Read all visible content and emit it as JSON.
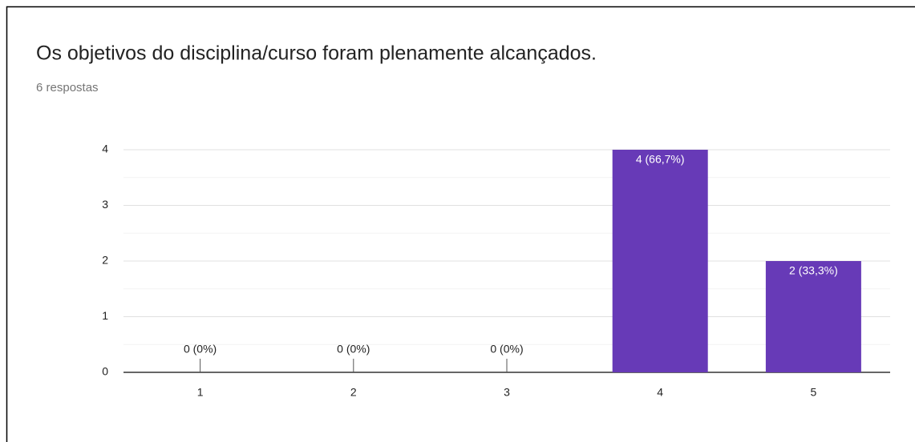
{
  "chart_data": {
    "type": "bar",
    "title": "Os objetivos do disciplina/curso foram plenamente alcançados.",
    "subtitle": "6 respostas",
    "categories": [
      "1",
      "2",
      "3",
      "4",
      "5"
    ],
    "values": [
      0,
      0,
      0,
      4,
      2
    ],
    "value_labels": [
      "0 (0%)",
      "0 (0%)",
      "0 (0%)",
      "4 (66,7%)",
      "2 (33,3%)"
    ],
    "color": "#673ab7",
    "ylim": [
      0,
      4
    ],
    "yticks": [
      0,
      1,
      2,
      3,
      4
    ],
    "minor_yticks": [
      0.5,
      1.5,
      2.5,
      3.5
    ],
    "grid": true
  }
}
